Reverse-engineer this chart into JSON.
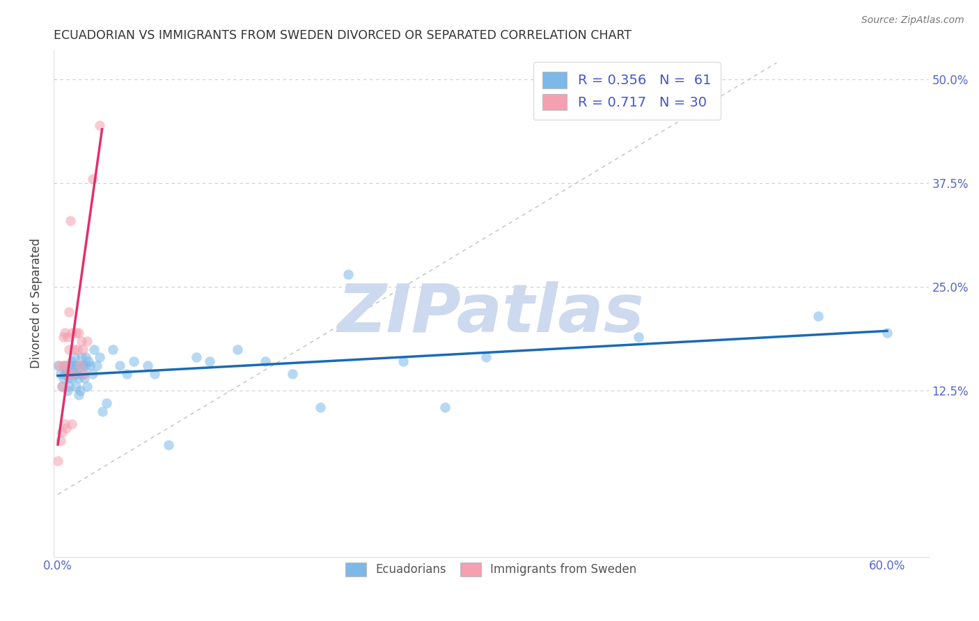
{
  "title": "ECUADORIAN VS IMMIGRANTS FROM SWEDEN DIVORCED OR SEPARATED CORRELATION CHART",
  "source": "Source: ZipAtlas.com",
  "ylabel": "Divorced or Separated",
  "xlim": [
    -0.003,
    0.63
  ],
  "ylim": [
    -0.075,
    0.535
  ],
  "x_ticks": [
    0.0,
    0.1,
    0.2,
    0.3,
    0.4,
    0.5,
    0.6
  ],
  "x_tick_labels": [
    "0.0%",
    "",
    "",
    "",
    "",
    "",
    "60.0%"
  ],
  "y_ticks": [
    0.125,
    0.25,
    0.375,
    0.5
  ],
  "right_tick_labels": [
    "12.5%",
    "25.0%",
    "37.5%",
    "50.0%"
  ],
  "legend_blue_label": "R = 0.356   N =  61",
  "legend_pink_label": "R = 0.717   N = 30",
  "blue_color": "#7cb8e8",
  "pink_color": "#f4a0b0",
  "blue_line_color": "#1a6ab5",
  "pink_line_color": "#e0306a",
  "watermark": "ZIPatlas",
  "watermark_color": "#ccd9ee",
  "blue_scatter_x": [
    0.0,
    0.002,
    0.003,
    0.004,
    0.005,
    0.005,
    0.006,
    0.007,
    0.007,
    0.008,
    0.008,
    0.009,
    0.009,
    0.01,
    0.01,
    0.011,
    0.011,
    0.012,
    0.012,
    0.013,
    0.013,
    0.014,
    0.015,
    0.015,
    0.016,
    0.016,
    0.017,
    0.018,
    0.018,
    0.019,
    0.02,
    0.02,
    0.021,
    0.022,
    0.023,
    0.025,
    0.026,
    0.028,
    0.03,
    0.032,
    0.035,
    0.04,
    0.045,
    0.05,
    0.055,
    0.065,
    0.07,
    0.08,
    0.1,
    0.11,
    0.13,
    0.15,
    0.17,
    0.19,
    0.21,
    0.25,
    0.28,
    0.31,
    0.42,
    0.55,
    0.6
  ],
  "blue_scatter_y": [
    0.155,
    0.145,
    0.13,
    0.14,
    0.155,
    0.145,
    0.15,
    0.145,
    0.125,
    0.14,
    0.13,
    0.155,
    0.145,
    0.14,
    0.16,
    0.15,
    0.155,
    0.145,
    0.165,
    0.13,
    0.155,
    0.145,
    0.14,
    0.12,
    0.155,
    0.125,
    0.165,
    0.145,
    0.155,
    0.14,
    0.155,
    0.165,
    0.13,
    0.16,
    0.155,
    0.145,
    0.175,
    0.155,
    0.165,
    0.1,
    0.11,
    0.175,
    0.155,
    0.145,
    0.16,
    0.155,
    0.145,
    0.06,
    0.165,
    0.16,
    0.175,
    0.16,
    0.145,
    0.105,
    0.265,
    0.16,
    0.105,
    0.165,
    0.19,
    0.215,
    0.195
  ],
  "pink_scatter_x": [
    0.0,
    0.001,
    0.002,
    0.003,
    0.003,
    0.004,
    0.004,
    0.005,
    0.005,
    0.006,
    0.006,
    0.007,
    0.007,
    0.008,
    0.008,
    0.009,
    0.01,
    0.01,
    0.011,
    0.012,
    0.013,
    0.014,
    0.015,
    0.016,
    0.017,
    0.018,
    0.019,
    0.021,
    0.025,
    0.03
  ],
  "pink_scatter_y": [
    0.04,
    0.155,
    0.065,
    0.13,
    0.075,
    0.19,
    0.155,
    0.195,
    0.085,
    0.08,
    0.155,
    0.19,
    0.145,
    0.22,
    0.175,
    0.33,
    0.195,
    0.085,
    0.145,
    0.175,
    0.195,
    0.175,
    0.195,
    0.155,
    0.185,
    0.175,
    0.145,
    0.185,
    0.38,
    0.445
  ],
  "blue_trend_x": [
    0.0,
    0.6
  ],
  "blue_trend_y": [
    0.143,
    0.197
  ],
  "pink_trend_x": [
    0.0,
    0.032
  ],
  "pink_trend_y": [
    0.06,
    0.44
  ],
  "diag_line_x": [
    0.0,
    0.52
  ],
  "diag_line_y": [
    0.0,
    0.52
  ],
  "legend_x": "Ecuadorians",
  "legend_y": "Immigrants from Sweden"
}
